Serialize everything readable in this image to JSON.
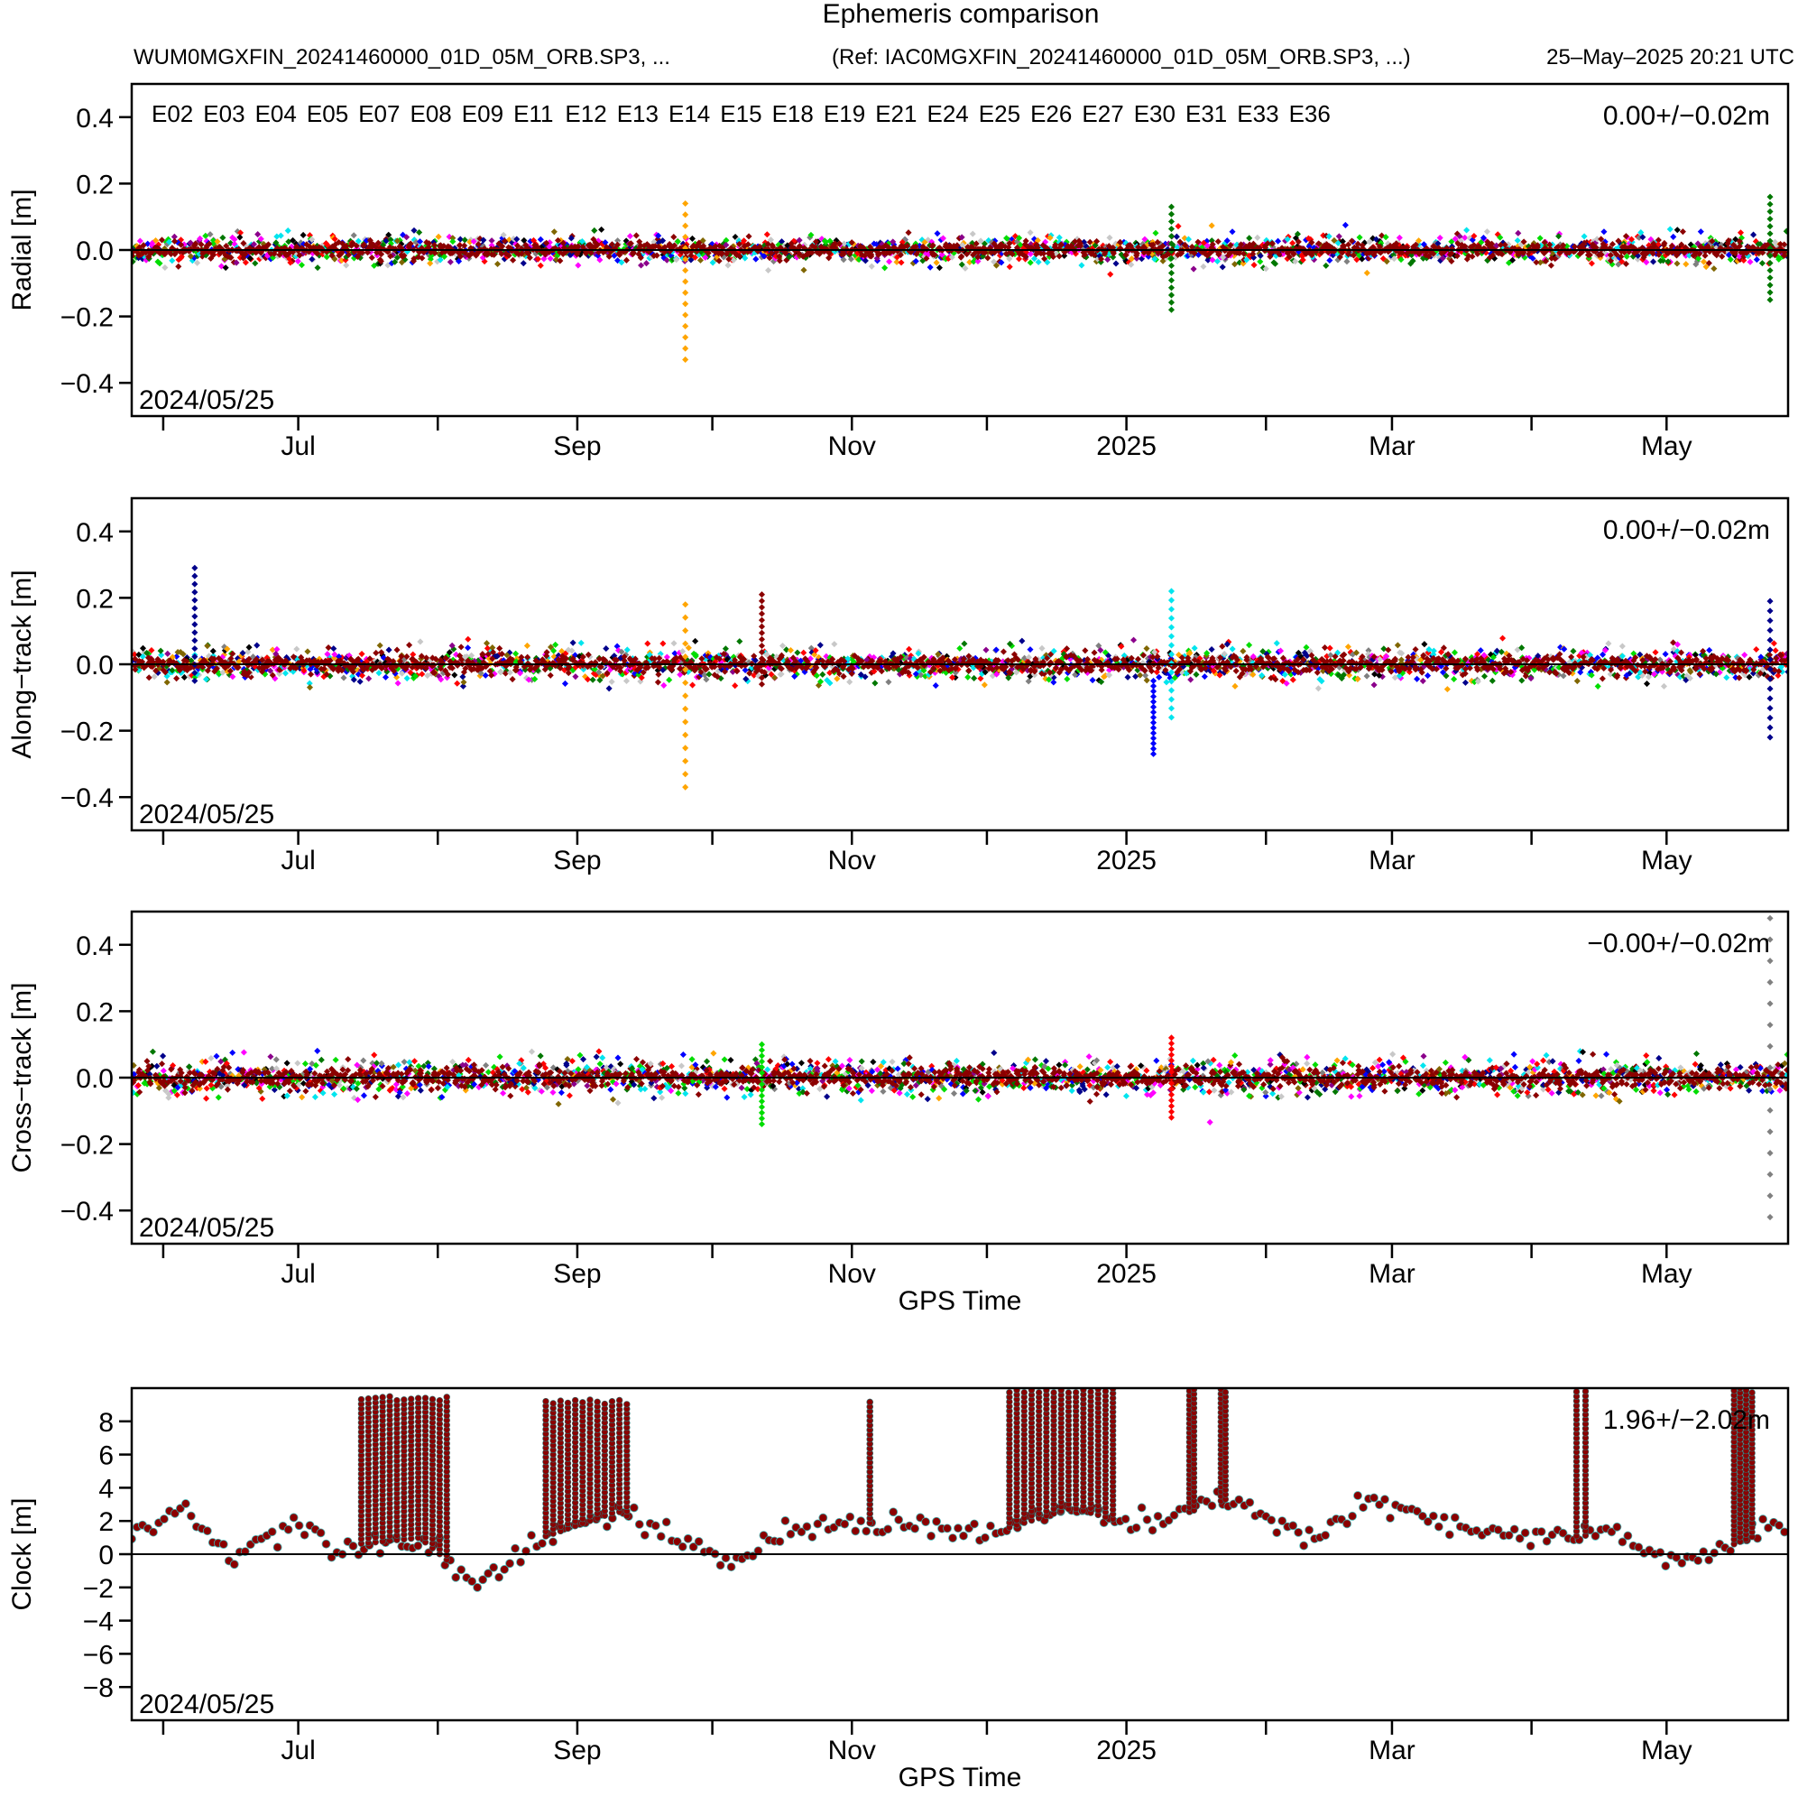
{
  "header": {
    "title": "Ephemeris comparison",
    "left_text": "WUM0MGXFIN_20241460000_01D_05M_ORB.SP3, ...",
    "ref_text": "(Ref: IAC0MGXFIN_20241460000_01D_05M_ORB.SP3, ...)",
    "timestamp": "25–May–2025 20:21 UTC"
  },
  "legend": [
    {
      "label": "E02",
      "color": "#ff0000"
    },
    {
      "label": "E03",
      "color": "#0000ff"
    },
    {
      "label": "E04",
      "color": "#00dd00"
    },
    {
      "label": "E05",
      "color": "#00008b"
    },
    {
      "label": "E07",
      "color": "#007700"
    },
    {
      "label": "E08",
      "color": "#00e5ee"
    },
    {
      "label": "E09",
      "color": "#ff00ff"
    },
    {
      "label": "E11",
      "color": "#c8c8c8"
    },
    {
      "label": "E12",
      "color": "#8b0000"
    },
    {
      "label": "E13",
      "color": "#ffa500"
    },
    {
      "label": "E14",
      "color": "#808080"
    },
    {
      "label": "E15",
      "color": "#806600"
    },
    {
      "label": "E18",
      "color": "#000000"
    },
    {
      "label": "E19",
      "color": "#ff0000"
    },
    {
      "label": "E21",
      "color": "#0000ff"
    },
    {
      "label": "E24",
      "color": "#00dd00"
    },
    {
      "label": "E25",
      "color": "#00008b"
    },
    {
      "label": "E26",
      "color": "#8b008b"
    },
    {
      "label": "E27",
      "color": "#007700"
    },
    {
      "label": "E30",
      "color": "#00e5ee"
    },
    {
      "label": "E31",
      "color": "#ff00ff"
    },
    {
      "label": "E33",
      "color": "#c8c8c8"
    },
    {
      "label": "E36",
      "color": "#8b0000"
    }
  ],
  "chart_data": [
    {
      "type": "scatter",
      "ylabel": "Radial [m]",
      "xlabel": "",
      "ylim": [
        -0.5,
        0.5
      ],
      "yticks": [
        {
          "value": -0.4,
          "label": "−0.4"
        },
        {
          "value": -0.2,
          "label": "−0.2"
        },
        {
          "value": 0.0,
          "label": "0.0"
        },
        {
          "value": 0.2,
          "label": "0.2"
        },
        {
          "value": 0.4,
          "label": "0.4"
        }
      ],
      "stats": "0.00+/−0.02m",
      "date_label": "2024/05/25",
      "noise": 0.022,
      "spikes": [
        {
          "date": "2024-09-25",
          "color": "#ffa500",
          "min": -0.33,
          "max": 0.14
        },
        {
          "date": "2025-01-11",
          "color": "#007700",
          "min": -0.18,
          "max": 0.13
        },
        {
          "date": "2025-05-24",
          "color": "#007700",
          "min": -0.15,
          "max": 0.16
        }
      ]
    },
    {
      "type": "scatter",
      "ylabel": "Along−track [m]",
      "xlabel": "",
      "ylim": [
        -0.5,
        0.5
      ],
      "yticks": [
        {
          "value": -0.4,
          "label": "−0.4"
        },
        {
          "value": -0.2,
          "label": "−0.2"
        },
        {
          "value": 0.0,
          "label": "0.0"
        },
        {
          "value": 0.2,
          "label": "0.2"
        },
        {
          "value": 0.4,
          "label": "0.4"
        }
      ],
      "stats": "0.00+/−0.02m",
      "date_label": "2024/05/25",
      "noise": 0.025,
      "spikes": [
        {
          "date": "2024-06-08",
          "color": "#00008b",
          "min": -0.05,
          "max": 0.29
        },
        {
          "date": "2024-09-25",
          "color": "#ffa500",
          "min": -0.37,
          "max": 0.18
        },
        {
          "date": "2024-10-12",
          "color": "#8b0000",
          "min": -0.06,
          "max": 0.21
        },
        {
          "date": "2025-01-11",
          "color": "#00e5ee",
          "min": -0.16,
          "max": 0.22
        },
        {
          "date": "2025-01-07",
          "color": "#0000ff",
          "min": -0.27,
          "max": -0.05
        },
        {
          "date": "2025-05-24",
          "color": "#00008b",
          "min": -0.22,
          "max": 0.19
        }
      ]
    },
    {
      "type": "scatter",
      "ylabel": "Cross−track [m]",
      "xlabel": "GPS Time",
      "ylim": [
        -0.5,
        0.5
      ],
      "yticks": [
        {
          "value": -0.4,
          "label": "−0.4"
        },
        {
          "value": -0.2,
          "label": "−0.2"
        },
        {
          "value": 0.0,
          "label": "0.0"
        },
        {
          "value": 0.2,
          "label": "0.2"
        },
        {
          "value": 0.4,
          "label": "0.4"
        }
      ],
      "stats": "−0.00+/−0.02m",
      "date_label": "2024/05/25",
      "noise": 0.028,
      "spikes": [
        {
          "date": "2024-10-12",
          "color": "#00dd00",
          "min": -0.14,
          "max": 0.1
        },
        {
          "date": "2025-01-11",
          "color": "#ff0000",
          "min": -0.12,
          "max": 0.12
        },
        {
          "date": "2025-05-24",
          "color": "#808080",
          "min": -0.42,
          "max": 0.48
        }
      ]
    },
    {
      "type": "scatter",
      "ylabel": "Clock [m]",
      "xlabel": "GPS Time",
      "ylim": [
        -10,
        10
      ],
      "yticks": [
        {
          "value": -8,
          "label": "−8"
        },
        {
          "value": -6,
          "label": "−6"
        },
        {
          "value": -4,
          "label": "−4"
        },
        {
          "value": -2,
          "label": "−2"
        },
        {
          "value": 0,
          "label": "0"
        },
        {
          "value": 2,
          "label": "2"
        },
        {
          "value": 4,
          "label": "4"
        },
        {
          "value": 6,
          "label": "6"
        },
        {
          "value": 8,
          "label": "8"
        }
      ],
      "stats": "1.96+/−2.02m",
      "date_label": "2024/05/25",
      "baseline": [
        {
          "date": "2024-05-25",
          "value": 1.0
        },
        {
          "date": "2024-06-05",
          "value": 2.9
        },
        {
          "date": "2024-06-15",
          "value": 0.0
        },
        {
          "date": "2024-06-30",
          "value": 1.8
        },
        {
          "date": "2024-07-10",
          "value": 0.5
        },
        {
          "date": "2024-07-28",
          "value": 1.0
        },
        {
          "date": "2024-08-10",
          "value": -1.9
        },
        {
          "date": "2024-08-22",
          "value": 0.8
        },
        {
          "date": "2024-09-10",
          "value": 2.6
        },
        {
          "date": "2024-09-25",
          "value": 0.4
        },
        {
          "date": "2024-10-05",
          "value": -0.4
        },
        {
          "date": "2024-10-20",
          "value": 1.5
        },
        {
          "date": "2024-11-10",
          "value": 2.0
        },
        {
          "date": "2024-12-01",
          "value": 1.2
        },
        {
          "date": "2024-12-20",
          "value": 2.8
        },
        {
          "date": "2025-01-05",
          "value": 1.6
        },
        {
          "date": "2025-01-25",
          "value": 3.5
        },
        {
          "date": "2025-02-10",
          "value": 0.8
        },
        {
          "date": "2025-02-25",
          "value": 3.2
        },
        {
          "date": "2025-03-15",
          "value": 1.5
        },
        {
          "date": "2025-04-01",
          "value": 1.0
        },
        {
          "date": "2025-04-20",
          "value": 1.2
        },
        {
          "date": "2025-05-01",
          "value": -0.5
        },
        {
          "date": "2025-05-15",
          "value": 0.5
        },
        {
          "date": "2025-05-25",
          "value": 1.6
        }
      ],
      "jump_ranges": [
        {
          "start": "2024-07-15",
          "end": "2024-08-03",
          "top": 9.5
        },
        {
          "start": "2024-08-25",
          "end": "2024-09-12",
          "top": 9.3
        },
        {
          "start": "2024-11-05",
          "end": "2024-11-05",
          "top": 9.2
        },
        {
          "start": "2024-12-06",
          "end": "2024-12-29",
          "top": 10.0
        },
        {
          "start": "2025-01-15",
          "end": "2025-01-16",
          "top": 10.0
        },
        {
          "start": "2025-01-22",
          "end": "2025-01-23",
          "top": 10.0
        },
        {
          "start": "2025-04-11",
          "end": "2025-04-13",
          "top": 10.0
        },
        {
          "start": "2025-05-16",
          "end": "2025-05-20",
          "top": 10.0
        }
      ]
    }
  ],
  "x_axis": {
    "range": [
      "2024-05-25",
      "2025-05-28"
    ],
    "labels": [
      {
        "date": "2024-07-01",
        "label": "Jul"
      },
      {
        "date": "2024-09-01",
        "label": "Sep"
      },
      {
        "date": "2024-11-01",
        "label": "Nov"
      },
      {
        "date": "2025-01-01",
        "label": "2025"
      },
      {
        "date": "2025-03-01",
        "label": "Mar"
      },
      {
        "date": "2025-05-01",
        "label": "May"
      }
    ],
    "minor_ticks": [
      "2024-06-01",
      "2024-08-01",
      "2024-10-01",
      "2024-12-01",
      "2025-02-01",
      "2025-04-01"
    ]
  }
}
